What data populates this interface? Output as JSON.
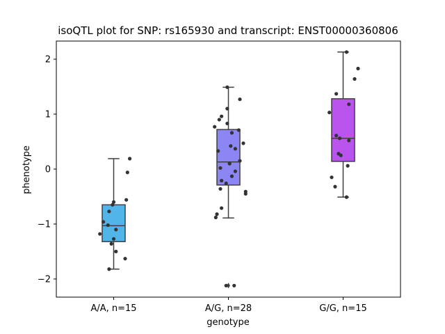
{
  "chart_data": {
    "type": "box",
    "title": "isoQTL plot for SNP: rs165930 and transcript: ENST00000360806",
    "xlabel": "genotype",
    "ylabel": "phenotype",
    "ylim": [
      -2.33,
      2.33
    ],
    "yticks": [
      -2,
      -1,
      0,
      1,
      2
    ],
    "yticklabels": [
      "−2",
      "−1",
      "0",
      "1",
      "2"
    ],
    "grid": false,
    "categories": [
      "A/A, n=15",
      "A/G, n=28",
      "G/G, n=15"
    ],
    "colors": [
      "#52b5e9",
      "#8b86f4",
      "#b954ec"
    ],
    "point_color": "#333333",
    "boxes": [
      {
        "whislo": -1.82,
        "q1": -1.32,
        "med": -1.03,
        "q3": -0.65,
        "whishi": 0.19,
        "fliers": []
      },
      {
        "whislo": -0.89,
        "q1": -0.29,
        "med": 0.13,
        "q3": 0.72,
        "whishi": 1.49,
        "fliers": [
          -2.12
        ]
      },
      {
        "whislo": -0.51,
        "q1": 0.14,
        "med": 0.56,
        "q3": 1.28,
        "whishi": 2.13,
        "fliers": []
      }
    ],
    "points": [
      [
        {
          "dx": -0.04,
          "y": -1.82
        },
        {
          "dx": 0.1,
          "y": -1.63
        },
        {
          "dx": 0.02,
          "y": -1.5
        },
        {
          "dx": -0.02,
          "y": -1.36
        },
        {
          "dx": 0.0,
          "y": -1.27
        },
        {
          "dx": -0.12,
          "y": -1.18
        },
        {
          "dx": 0.02,
          "y": -1.1
        },
        {
          "dx": -0.05,
          "y": -1.02
        },
        {
          "dx": -0.09,
          "y": -0.96
        },
        {
          "dx": -0.04,
          "y": -0.77
        },
        {
          "dx": -0.01,
          "y": -0.65
        },
        {
          "dx": 0.0,
          "y": -0.6
        },
        {
          "dx": 0.11,
          "y": -0.56
        },
        {
          "dx": 0.12,
          "y": -0.06
        },
        {
          "dx": 0.14,
          "y": 0.19
        }
      ],
      [
        {
          "dx": -0.02,
          "y": -2.12
        },
        {
          "dx": 0.05,
          "y": -2.12
        },
        {
          "dx": -0.11,
          "y": -0.88
        },
        {
          "dx": -0.1,
          "y": -0.82
        },
        {
          "dx": -0.06,
          "y": -0.71
        },
        {
          "dx": 0.15,
          "y": -0.45
        },
        {
          "dx": 0.15,
          "y": -0.41
        },
        {
          "dx": -0.07,
          "y": -0.36
        },
        {
          "dx": -0.02,
          "y": -0.26
        },
        {
          "dx": -0.06,
          "y": -0.21
        },
        {
          "dx": 0.03,
          "y": -0.13
        },
        {
          "dx": 0.06,
          "y": -0.04
        },
        {
          "dx": -0.07,
          "y": 0.02
        },
        {
          "dx": 0.01,
          "y": 0.1
        },
        {
          "dx": 0.1,
          "y": 0.15
        },
        {
          "dx": -0.09,
          "y": 0.33
        },
        {
          "dx": 0.06,
          "y": 0.37
        },
        {
          "dx": 0.02,
          "y": 0.42
        },
        {
          "dx": 0.13,
          "y": 0.47
        },
        {
          "dx": 0.03,
          "y": 0.66
        },
        {
          "dx": 0.09,
          "y": 0.71
        },
        {
          "dx": -0.12,
          "y": 0.77
        },
        {
          "dx": -0.01,
          "y": 0.83
        },
        {
          "dx": -0.08,
          "y": 0.9
        },
        {
          "dx": -0.06,
          "y": 0.96
        },
        {
          "dx": -0.01,
          "y": 1.1
        },
        {
          "dx": 0.1,
          "y": 1.27
        },
        {
          "dx": -0.01,
          "y": 1.49
        }
      ],
      [
        {
          "dx": 0.03,
          "y": -0.51
        },
        {
          "dx": -0.07,
          "y": -0.32
        },
        {
          "dx": -0.1,
          "y": -0.15
        },
        {
          "dx": 0.04,
          "y": 0.06
        },
        {
          "dx": -0.02,
          "y": 0.25
        },
        {
          "dx": -0.04,
          "y": 0.28
        },
        {
          "dx": 0.05,
          "y": 0.52
        },
        {
          "dx": -0.03,
          "y": 0.56
        },
        {
          "dx": -0.06,
          "y": 0.61
        },
        {
          "dx": -0.12,
          "y": 1.03
        },
        {
          "dx": 0.05,
          "y": 1.18
        },
        {
          "dx": -0.06,
          "y": 1.37
        },
        {
          "dx": 0.1,
          "y": 1.64
        },
        {
          "dx": 0.13,
          "y": 1.83
        },
        {
          "dx": 0.03,
          "y": 2.13
        }
      ]
    ]
  }
}
